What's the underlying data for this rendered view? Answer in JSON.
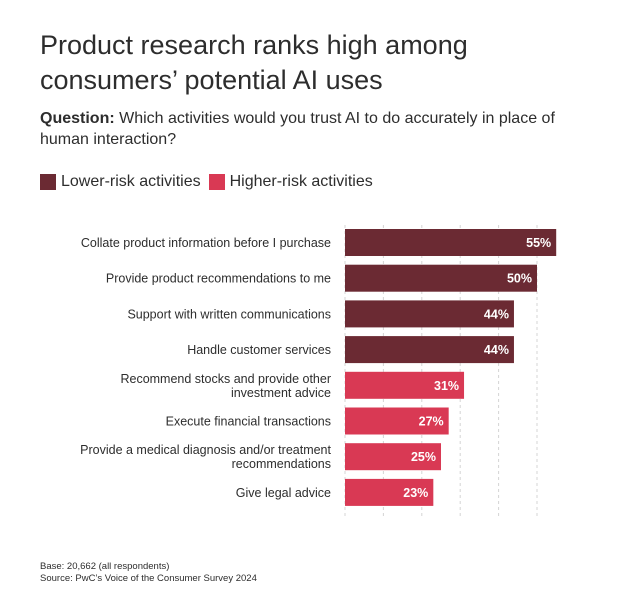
{
  "title": "Product research ranks high among consumers’ potential AI uses",
  "question": {
    "label": "Question:",
    "text": "Which activities would you trust AI to do accurately in place of human interaction?"
  },
  "legend": [
    {
      "name": "Lower-risk activities",
      "color": "#6b2a33"
    },
    {
      "name": "Higher-risk activities",
      "color": "#d93954"
    }
  ],
  "chart_data": {
    "type": "bar",
    "orientation": "horizontal",
    "categories": [
      "Collate product information before I purchase",
      "Provide product recommendations to me",
      "Support with written communications",
      "Handle customer services",
      "Recommend stocks and provide other investment advice",
      "Execute financial transactions",
      "Provide a medical diagnosis and/or treatment recommendations",
      "Give legal advice"
    ],
    "category_lines": [
      [
        "Collate product information before I purchase"
      ],
      [
        "Provide product recommendations to me"
      ],
      [
        "Support with written communications"
      ],
      [
        "Handle customer services"
      ],
      [
        "Recommend stocks and provide other",
        "investment advice"
      ],
      [
        "Execute financial transactions"
      ],
      [
        "Provide a medical diagnosis and/or treatment",
        "recommendations"
      ],
      [
        "Give legal advice"
      ]
    ],
    "values": [
      55,
      50,
      44,
      44,
      31,
      27,
      25,
      23
    ],
    "value_labels": [
      "55%",
      "50%",
      "44%",
      "44%",
      "31%",
      "27%",
      "25%",
      "23%"
    ],
    "groups": [
      "Lower-risk activities",
      "Lower-risk activities",
      "Lower-risk activities",
      "Lower-risk activities",
      "Higher-risk activities",
      "Higher-risk activities",
      "Higher-risk activities",
      "Higher-risk activities"
    ],
    "xlim": [
      0,
      60
    ],
    "grid": true,
    "legend_position": "top-left"
  },
  "footnotes": {
    "base": "Base: 20,662 (all respondents)",
    "source": "Source: PwC’s Voice of the Consumer Survey 2024"
  }
}
